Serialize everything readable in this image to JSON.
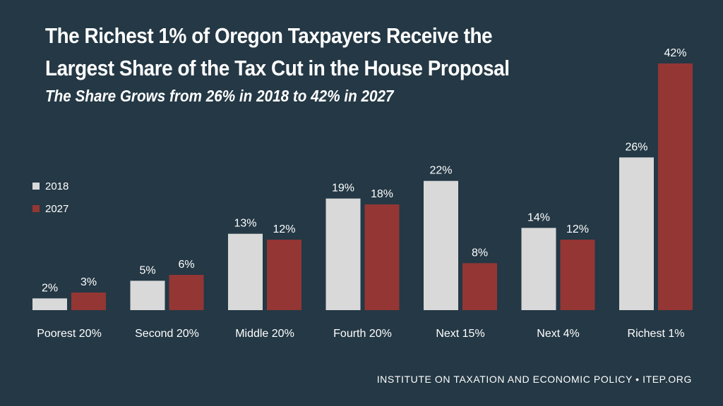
{
  "chart_data": {
    "type": "bar",
    "title": "The Richest 1% of Oregon Taxpayers Receive the Largest Share of the Tax Cut in the House Proposal",
    "subtitle": "The Share Grows from 26% in 2018 to 42% in 2027",
    "categories": [
      "Poorest 20%",
      "Second 20%",
      "Middle 20%",
      "Fourth 20%",
      "Next 15%",
      "Next 4%",
      "Richest 1%"
    ],
    "series": [
      {
        "name": "2018",
        "color": "#d9d9d9",
        "values": [
          2,
          5,
          13,
          19,
          22,
          14,
          26
        ]
      },
      {
        "name": "2027",
        "color": "#943634",
        "values": [
          3,
          6,
          12,
          18,
          8,
          12,
          42
        ]
      }
    ],
    "value_suffix": "%",
    "ylim": [
      0,
      42
    ],
    "grid": false,
    "legend_position": "left",
    "source": "INSTITUTE ON TAXATION AND ECONOMIC POLICY • ITEP.ORG"
  }
}
